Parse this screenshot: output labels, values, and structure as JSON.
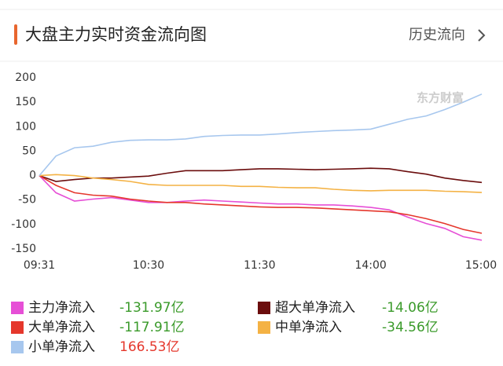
{
  "header": {
    "title": "大盘主力实时资金流向图",
    "link": "历史流向"
  },
  "chart_data": {
    "type": "line",
    "watermark": "东方财富",
    "x": [
      "09:31",
      "09:40",
      "09:50",
      "10:00",
      "10:10",
      "10:20",
      "10:30",
      "10:40",
      "10:50",
      "11:00",
      "11:10",
      "11:20",
      "11:30",
      "13:10",
      "13:20",
      "13:30",
      "13:40",
      "13:50",
      "14:00",
      "14:10",
      "14:20",
      "14:30",
      "14:40",
      "14:50",
      "15:00"
    ],
    "xlim": [
      "09:31",
      "15:00"
    ],
    "xticks": [
      "09:31",
      "10:30",
      "11:30",
      "14:00",
      "15:00"
    ],
    "ylim": [
      -150,
      200
    ],
    "yticks": [
      200,
      150,
      100,
      50,
      0,
      -50,
      -100,
      -150
    ],
    "grid": false,
    "series": [
      {
        "name": "主力净流入",
        "color": "#e64fd6",
        "legend_value": -131.97,
        "legend_label": "-131.97亿",
        "legend_value_color": "#3a9a2a",
        "values": [
          0,
          -35,
          -52,
          -48,
          -45,
          -50,
          -55,
          -55,
          -52,
          -50,
          -52,
          -54,
          -56,
          -58,
          -58,
          -60,
          -60,
          -62,
          -65,
          -70,
          -85,
          -98,
          -108,
          -125,
          -131.97
        ]
      },
      {
        "name": "超大单净流入",
        "color": "#6b0d0d",
        "legend_value": -14.06,
        "legend_label": "-14.06亿",
        "legend_value_color": "#3a9a2a",
        "values": [
          0,
          -12,
          -8,
          -5,
          -5,
          -3,
          -1,
          5,
          10,
          10,
          10,
          12,
          14,
          14,
          13,
          12,
          13,
          14,
          15,
          14,
          8,
          3,
          -5,
          -10,
          -14.06
        ]
      },
      {
        "name": "大单净流入",
        "color": "#e5372c",
        "legend_value": -117.91,
        "legend_label": "-117.91亿",
        "legend_value_color": "#3a9a2a",
        "values": [
          0,
          -20,
          -35,
          -40,
          -42,
          -48,
          -52,
          -55,
          -55,
          -58,
          -60,
          -62,
          -64,
          -65,
          -65,
          -66,
          -68,
          -70,
          -72,
          -74,
          -80,
          -88,
          -98,
          -110,
          -117.91
        ]
      },
      {
        "name": "中单净流入",
        "color": "#f4b244",
        "legend_value": -34.56,
        "legend_label": "-34.56亿",
        "legend_value_color": "#3a9a2a",
        "values": [
          0,
          2,
          0,
          -5,
          -8,
          -12,
          -18,
          -20,
          -20,
          -20,
          -20,
          -22,
          -22,
          -24,
          -25,
          -25,
          -28,
          -30,
          -31,
          -30,
          -30,
          -30,
          -32,
          -33,
          -34.56
        ]
      },
      {
        "name": "小单净流入",
        "color": "#a7c7ee",
        "legend_value": 166.53,
        "legend_label": "166.53亿",
        "legend_value_color": "#e5372c",
        "values": [
          0,
          40,
          57,
          60,
          68,
          72,
          73,
          73,
          75,
          80,
          82,
          83,
          83,
          85,
          88,
          90,
          92,
          93,
          95,
          105,
          115,
          122,
          135,
          150,
          166.53
        ]
      }
    ]
  }
}
